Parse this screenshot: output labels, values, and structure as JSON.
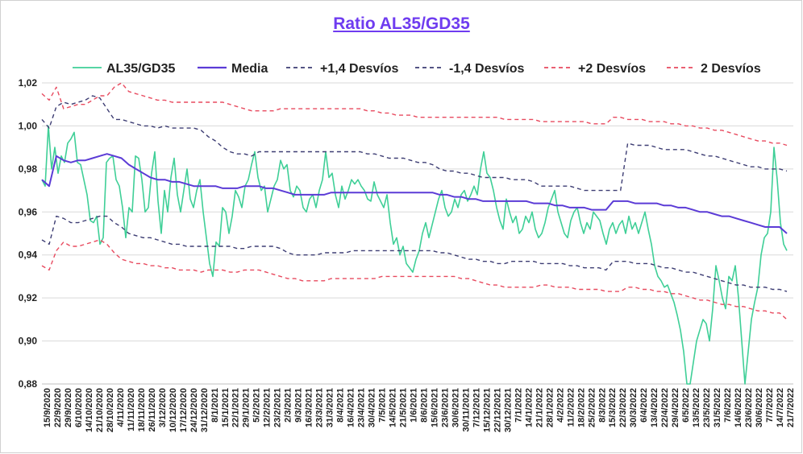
{
  "chart_data": {
    "type": "line",
    "title": "Ratio AL35/GD35",
    "xlabel": "",
    "ylabel": "",
    "ylim": [
      0.88,
      1.02
    ],
    "yticks": [
      "0,88",
      "0,90",
      "0,92",
      "0,94",
      "0,96",
      "0,98",
      "1,00",
      "1,02"
    ],
    "xticks": [
      "15/9/2020",
      "22/9/2020",
      "29/9/2020",
      "6/10/2020",
      "14/10/2020",
      "21/10/2020",
      "28/10/2020",
      "4/11/2020",
      "11/11/2020",
      "18/11/2020",
      "26/11/2020",
      "3/12/2020",
      "10/12/2020",
      "17/12/2020",
      "24/12/2020",
      "31/12/2020",
      "8/1/2021",
      "15/1/2021",
      "22/1/2021",
      "29/1/2021",
      "5/2/2021",
      "12/2/2021",
      "23/2/2021",
      "2/3/2021",
      "9/3/2021",
      "16/3/2021",
      "23/3/2021",
      "31/3/2021",
      "8/4/2021",
      "16/4/2021",
      "23/4/2021",
      "30/4/2021",
      "7/5/2021",
      "14/5/2021",
      "21/5/2021",
      "1/6/2021",
      "8/6/2021",
      "15/6/2021",
      "23/6/2021",
      "30/6/2021",
      "30/11/2021",
      "7/12/2021",
      "15/12/2021",
      "22/12/2021",
      "30/12/2021",
      "7/1/2022",
      "14/1/2022",
      "21/1/2022",
      "28/1/2022",
      "4/2/2022",
      "11/2/2022",
      "18/2/2022",
      "25/2/2022",
      "8/3/2022",
      "15/3/2022",
      "22/3/2022",
      "30/3/2022",
      "6/4/2022",
      "13/4/2022",
      "22/4/2022",
      "29/4/2022",
      "6/5/2022",
      "13/5/2022",
      "23/5/2022",
      "31/5/2022",
      "7/6/2022",
      "14/6/2022",
      "23/6/2022",
      "30/6/2022",
      "7/7/2022",
      "14/7/2022",
      "21/7/2022"
    ],
    "grid": true,
    "legend_position": "top",
    "series": [
      {
        "name": "AL35/GD35",
        "color": "#3fcf97",
        "style": "solid",
        "values": [
          0.975,
          0.972,
          1.0,
          0.98,
          0.99,
          0.978,
          0.986,
          0.983,
          0.992,
          0.994,
          0.997,
          0.983,
          0.982,
          0.975,
          0.968,
          0.956,
          0.955,
          0.958,
          0.945,
          0.948,
          0.983,
          0.985,
          0.986,
          0.975,
          0.972,
          0.962,
          0.948,
          0.962,
          0.96,
          0.986,
          0.985,
          0.975,
          0.96,
          0.962,
          0.978,
          0.988,
          0.965,
          0.95,
          0.97,
          0.96,
          0.976,
          0.985,
          0.968,
          0.96,
          0.97,
          0.98,
          0.966,
          0.962,
          0.97,
          0.975,
          0.96,
          0.948,
          0.936,
          0.93,
          0.946,
          0.944,
          0.962,
          0.96,
          0.95,
          0.958,
          0.97,
          0.967,
          0.962,
          0.972,
          0.975,
          0.982,
          0.988,
          0.976,
          0.97,
          0.972,
          0.96,
          0.966,
          0.972,
          0.975,
          0.984,
          0.98,
          0.982,
          0.97,
          0.967,
          0.972,
          0.97,
          0.962,
          0.96,
          0.966,
          0.968,
          0.962,
          0.97,
          0.975,
          0.988,
          0.976,
          0.978,
          0.968,
          0.962,
          0.972,
          0.966,
          0.97,
          0.975,
          0.973,
          0.975,
          0.972,
          0.97,
          0.966,
          0.965,
          0.974,
          0.968,
          0.965,
          0.962,
          0.968,
          0.955,
          0.945,
          0.948,
          0.94,
          0.944,
          0.936,
          0.934,
          0.932,
          0.938,
          0.942,
          0.95,
          0.955,
          0.948,
          0.954,
          0.96,
          0.966,
          0.97,
          0.962,
          0.958,
          0.96,
          0.966,
          0.962,
          0.968,
          0.97,
          0.965,
          0.968,
          0.972,
          0.968,
          0.98,
          0.988,
          0.978,
          0.976,
          0.97,
          0.962,
          0.956,
          0.952,
          0.966,
          0.96,
          0.955,
          0.958,
          0.95,
          0.952,
          0.958,
          0.955,
          0.96,
          0.952,
          0.948,
          0.95,
          0.955,
          0.962,
          0.966,
          0.97,
          0.96,
          0.955,
          0.95,
          0.948,
          0.956,
          0.96,
          0.962,
          0.955,
          0.95,
          0.955,
          0.952,
          0.96,
          0.958,
          0.956,
          0.95,
          0.945,
          0.952,
          0.955,
          0.95,
          0.954,
          0.956,
          0.95,
          0.958,
          0.952,
          0.955,
          0.95,
          0.955,
          0.96,
          0.952,
          0.945,
          0.935,
          0.93,
          0.928,
          0.925,
          0.926,
          0.922,
          0.918,
          0.912,
          0.905,
          0.895,
          0.88,
          0.875,
          0.89,
          0.9,
          0.905,
          0.91,
          0.908,
          0.9,
          0.915,
          0.935,
          0.928,
          0.92,
          0.915,
          0.93,
          0.928,
          0.935,
          0.92,
          0.9,
          0.88,
          0.895,
          0.91,
          0.918,
          0.925,
          0.94,
          0.948,
          0.95,
          0.96,
          0.99,
          0.975,
          0.955,
          0.945,
          0.942
        ]
      },
      {
        "name": "Media",
        "color": "#5b3bd6",
        "style": "solid",
        "values": [
          0.975,
          0.972,
          0.986,
          0.984,
          0.983,
          0.984,
          0.984,
          0.985,
          0.986,
          0.987,
          0.986,
          0.985,
          0.982,
          0.98,
          0.978,
          0.976,
          0.975,
          0.975,
          0.974,
          0.974,
          0.973,
          0.972,
          0.972,
          0.972,
          0.972,
          0.971,
          0.971,
          0.971,
          0.972,
          0.972,
          0.972,
          0.971,
          0.971,
          0.97,
          0.969,
          0.968,
          0.968,
          0.968,
          0.968,
          0.968,
          0.969,
          0.969,
          0.969,
          0.969,
          0.969,
          0.969,
          0.969,
          0.969,
          0.969,
          0.969,
          0.969,
          0.969,
          0.969,
          0.969,
          0.969,
          0.968,
          0.968,
          0.967,
          0.967,
          0.966,
          0.966,
          0.965,
          0.965,
          0.965,
          0.965,
          0.965,
          0.965,
          0.965,
          0.964,
          0.964,
          0.964,
          0.963,
          0.963,
          0.962,
          0.962,
          0.962,
          0.961,
          0.961,
          0.961,
          0.965,
          0.965,
          0.965,
          0.964,
          0.964,
          0.964,
          0.964,
          0.963,
          0.963,
          0.962,
          0.962,
          0.961,
          0.96,
          0.96,
          0.959,
          0.958,
          0.958,
          0.957,
          0.956,
          0.955,
          0.954,
          0.953,
          0.953,
          0.953,
          0.95
        ]
      },
      {
        "name": "+1,4 Desvíos",
        "color": "#3d3d73",
        "style": "dash",
        "values": [
          1.003,
          0.999,
          1.009,
          1.011,
          1.01,
          1.011,
          1.012,
          1.014,
          1.013,
          1.008,
          1.003,
          1.003,
          1.002,
          1.001,
          1.0,
          1.0,
          0.999,
          1.0,
          0.999,
          0.999,
          0.999,
          0.999,
          0.998,
          0.995,
          0.993,
          0.99,
          0.988,
          0.987,
          0.987,
          0.986,
          0.988,
          0.988,
          0.988,
          0.988,
          0.988,
          0.988,
          0.988,
          0.988,
          0.988,
          0.988,
          0.988,
          0.988,
          0.988,
          0.988,
          0.988,
          0.987,
          0.987,
          0.986,
          0.985,
          0.985,
          0.985,
          0.984,
          0.983,
          0.983,
          0.982,
          0.98,
          0.979,
          0.979,
          0.978,
          0.978,
          0.977,
          0.976,
          0.976,
          0.976,
          0.976,
          0.975,
          0.975,
          0.975,
          0.974,
          0.972,
          0.972,
          0.972,
          0.972,
          0.972,
          0.971,
          0.97,
          0.97,
          0.97,
          0.97,
          0.97,
          0.97,
          0.992,
          0.991,
          0.991,
          0.991,
          0.99,
          0.989,
          0.989,
          0.989,
          0.989,
          0.988,
          0.987,
          0.986,
          0.986,
          0.985,
          0.984,
          0.983,
          0.982,
          0.981,
          0.981,
          0.98,
          0.98,
          0.98,
          0.979
        ]
      },
      {
        "name": "-1,4 Desvíos",
        "color": "#3d3d73",
        "style": "dash",
        "values": [
          0.947,
          0.945,
          0.958,
          0.957,
          0.955,
          0.955,
          0.956,
          0.957,
          0.958,
          0.958,
          0.955,
          0.953,
          0.95,
          0.949,
          0.948,
          0.948,
          0.947,
          0.946,
          0.945,
          0.945,
          0.944,
          0.944,
          0.944,
          0.944,
          0.944,
          0.944,
          0.944,
          0.943,
          0.943,
          0.944,
          0.944,
          0.944,
          0.944,
          0.943,
          0.941,
          0.94,
          0.94,
          0.94,
          0.94,
          0.941,
          0.941,
          0.941,
          0.941,
          0.942,
          0.942,
          0.942,
          0.942,
          0.942,
          0.942,
          0.942,
          0.942,
          0.942,
          0.942,
          0.942,
          0.942,
          0.941,
          0.941,
          0.94,
          0.939,
          0.938,
          0.938,
          0.937,
          0.937,
          0.936,
          0.936,
          0.937,
          0.937,
          0.937,
          0.937,
          0.936,
          0.936,
          0.936,
          0.936,
          0.935,
          0.935,
          0.934,
          0.934,
          0.934,
          0.933,
          0.937,
          0.937,
          0.937,
          0.936,
          0.936,
          0.936,
          0.935,
          0.934,
          0.934,
          0.933,
          0.932,
          0.932,
          0.931,
          0.93,
          0.929,
          0.928,
          0.927,
          0.926,
          0.926,
          0.925,
          0.925,
          0.925,
          0.924,
          0.924,
          0.923
        ]
      },
      {
        "name": "+2 Desvíos",
        "color": "#e84a5f",
        "style": "dash",
        "values": [
          1.015,
          1.012,
          1.018,
          1.008,
          1.009,
          1.01,
          1.01,
          1.012,
          1.014,
          1.014,
          1.018,
          1.02,
          1.016,
          1.015,
          1.014,
          1.013,
          1.012,
          1.012,
          1.011,
          1.011,
          1.011,
          1.011,
          1.011,
          1.011,
          1.011,
          1.011,
          1.01,
          1.009,
          1.008,
          1.007,
          1.007,
          1.007,
          1.007,
          1.008,
          1.008,
          1.008,
          1.008,
          1.008,
          1.008,
          1.008,
          1.008,
          1.008,
          1.008,
          1.008,
          1.008,
          1.007,
          1.007,
          1.006,
          1.006,
          1.005,
          1.005,
          1.005,
          1.004,
          1.004,
          1.004,
          1.004,
          1.004,
          1.004,
          1.004,
          1.004,
          1.004,
          1.004,
          1.004,
          1.004,
          1.003,
          1.003,
          1.003,
          1.003,
          1.003,
          1.002,
          1.002,
          1.002,
          1.002,
          1.002,
          1.002,
          1.002,
          1.001,
          1.001,
          1.001,
          1.004,
          1.004,
          1.003,
          1.003,
          1.003,
          1.002,
          1.002,
          1.002,
          1.001,
          1.001,
          1.0,
          1.0,
          0.999,
          0.999,
          0.998,
          0.998,
          0.997,
          0.996,
          0.995,
          0.994,
          0.993,
          0.993,
          0.992,
          0.992,
          0.991
        ]
      },
      {
        "name": "2 Desvíos",
        "color": "#e84a5f",
        "style": "dash",
        "values": [
          0.935,
          0.933,
          0.942,
          0.946,
          0.944,
          0.944,
          0.945,
          0.946,
          0.947,
          0.945,
          0.941,
          0.938,
          0.937,
          0.936,
          0.936,
          0.935,
          0.935,
          0.934,
          0.934,
          0.933,
          0.933,
          0.933,
          0.932,
          0.933,
          0.933,
          0.933,
          0.932,
          0.932,
          0.933,
          0.933,
          0.933,
          0.932,
          0.931,
          0.93,
          0.929,
          0.929,
          0.928,
          0.928,
          0.928,
          0.928,
          0.929,
          0.929,
          0.929,
          0.929,
          0.929,
          0.929,
          0.929,
          0.93,
          0.93,
          0.93,
          0.93,
          0.93,
          0.93,
          0.93,
          0.93,
          0.93,
          0.93,
          0.93,
          0.929,
          0.929,
          0.928,
          0.927,
          0.926,
          0.926,
          0.925,
          0.925,
          0.925,
          0.925,
          0.925,
          0.926,
          0.926,
          0.925,
          0.925,
          0.925,
          0.924,
          0.924,
          0.924,
          0.924,
          0.923,
          0.923,
          0.923,
          0.925,
          0.925,
          0.924,
          0.924,
          0.923,
          0.923,
          0.922,
          0.922,
          0.921,
          0.92,
          0.919,
          0.919,
          0.918,
          0.917,
          0.917,
          0.916,
          0.916,
          0.915,
          0.914,
          0.914,
          0.913,
          0.913,
          0.91
        ]
      }
    ]
  }
}
